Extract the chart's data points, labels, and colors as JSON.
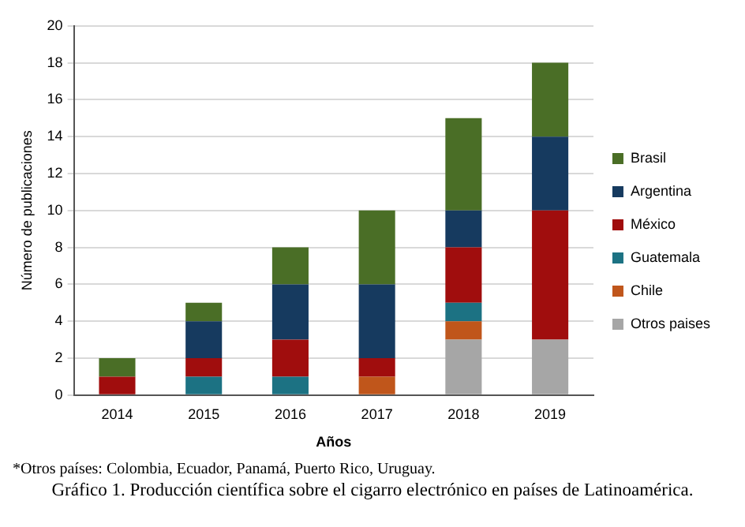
{
  "chart_data": {
    "type": "bar",
    "title": "Gráfico 1. Producción científica sobre el cigarro electrónico en países de Latinoamérica.",
    "xlabel": "Años",
    "ylabel": "Número de publicaciones",
    "categories": [
      "2014",
      "2015",
      "2016",
      "2017",
      "2018",
      "2019"
    ],
    "stacked": true,
    "series": [
      {
        "name": "Otros paises",
        "color": "#a6a6a6",
        "values": [
          0,
          0,
          0,
          0,
          3,
          3
        ]
      },
      {
        "name": "Chile",
        "color": "#c0561b",
        "values": [
          0,
          0,
          0,
          1,
          1,
          0
        ]
      },
      {
        "name": "Guatemala",
        "color": "#1c7283",
        "values": [
          0,
          1,
          1,
          0,
          1,
          0
        ]
      },
      {
        "name": "México",
        "color": "#a00d0d",
        "values": [
          1,
          1,
          2,
          1,
          3,
          7
        ]
      },
      {
        "name": "Argentina",
        "color": "#163a5f",
        "values": [
          0,
          2,
          3,
          4,
          2,
          4
        ]
      },
      {
        "name": "Brasil",
        "color": "#4a6e26",
        "values": [
          1,
          1,
          2,
          4,
          5,
          4
        ]
      }
    ],
    "ylim": [
      0,
      20
    ],
    "yticks": [
      0,
      2,
      4,
      6,
      8,
      10,
      12,
      14,
      16,
      18,
      20
    ],
    "grid": "y",
    "legend": "right",
    "annotations": [
      "*Otros países: Colombia, Ecuador, Panamá, Puerto Rico, Uruguay."
    ]
  }
}
